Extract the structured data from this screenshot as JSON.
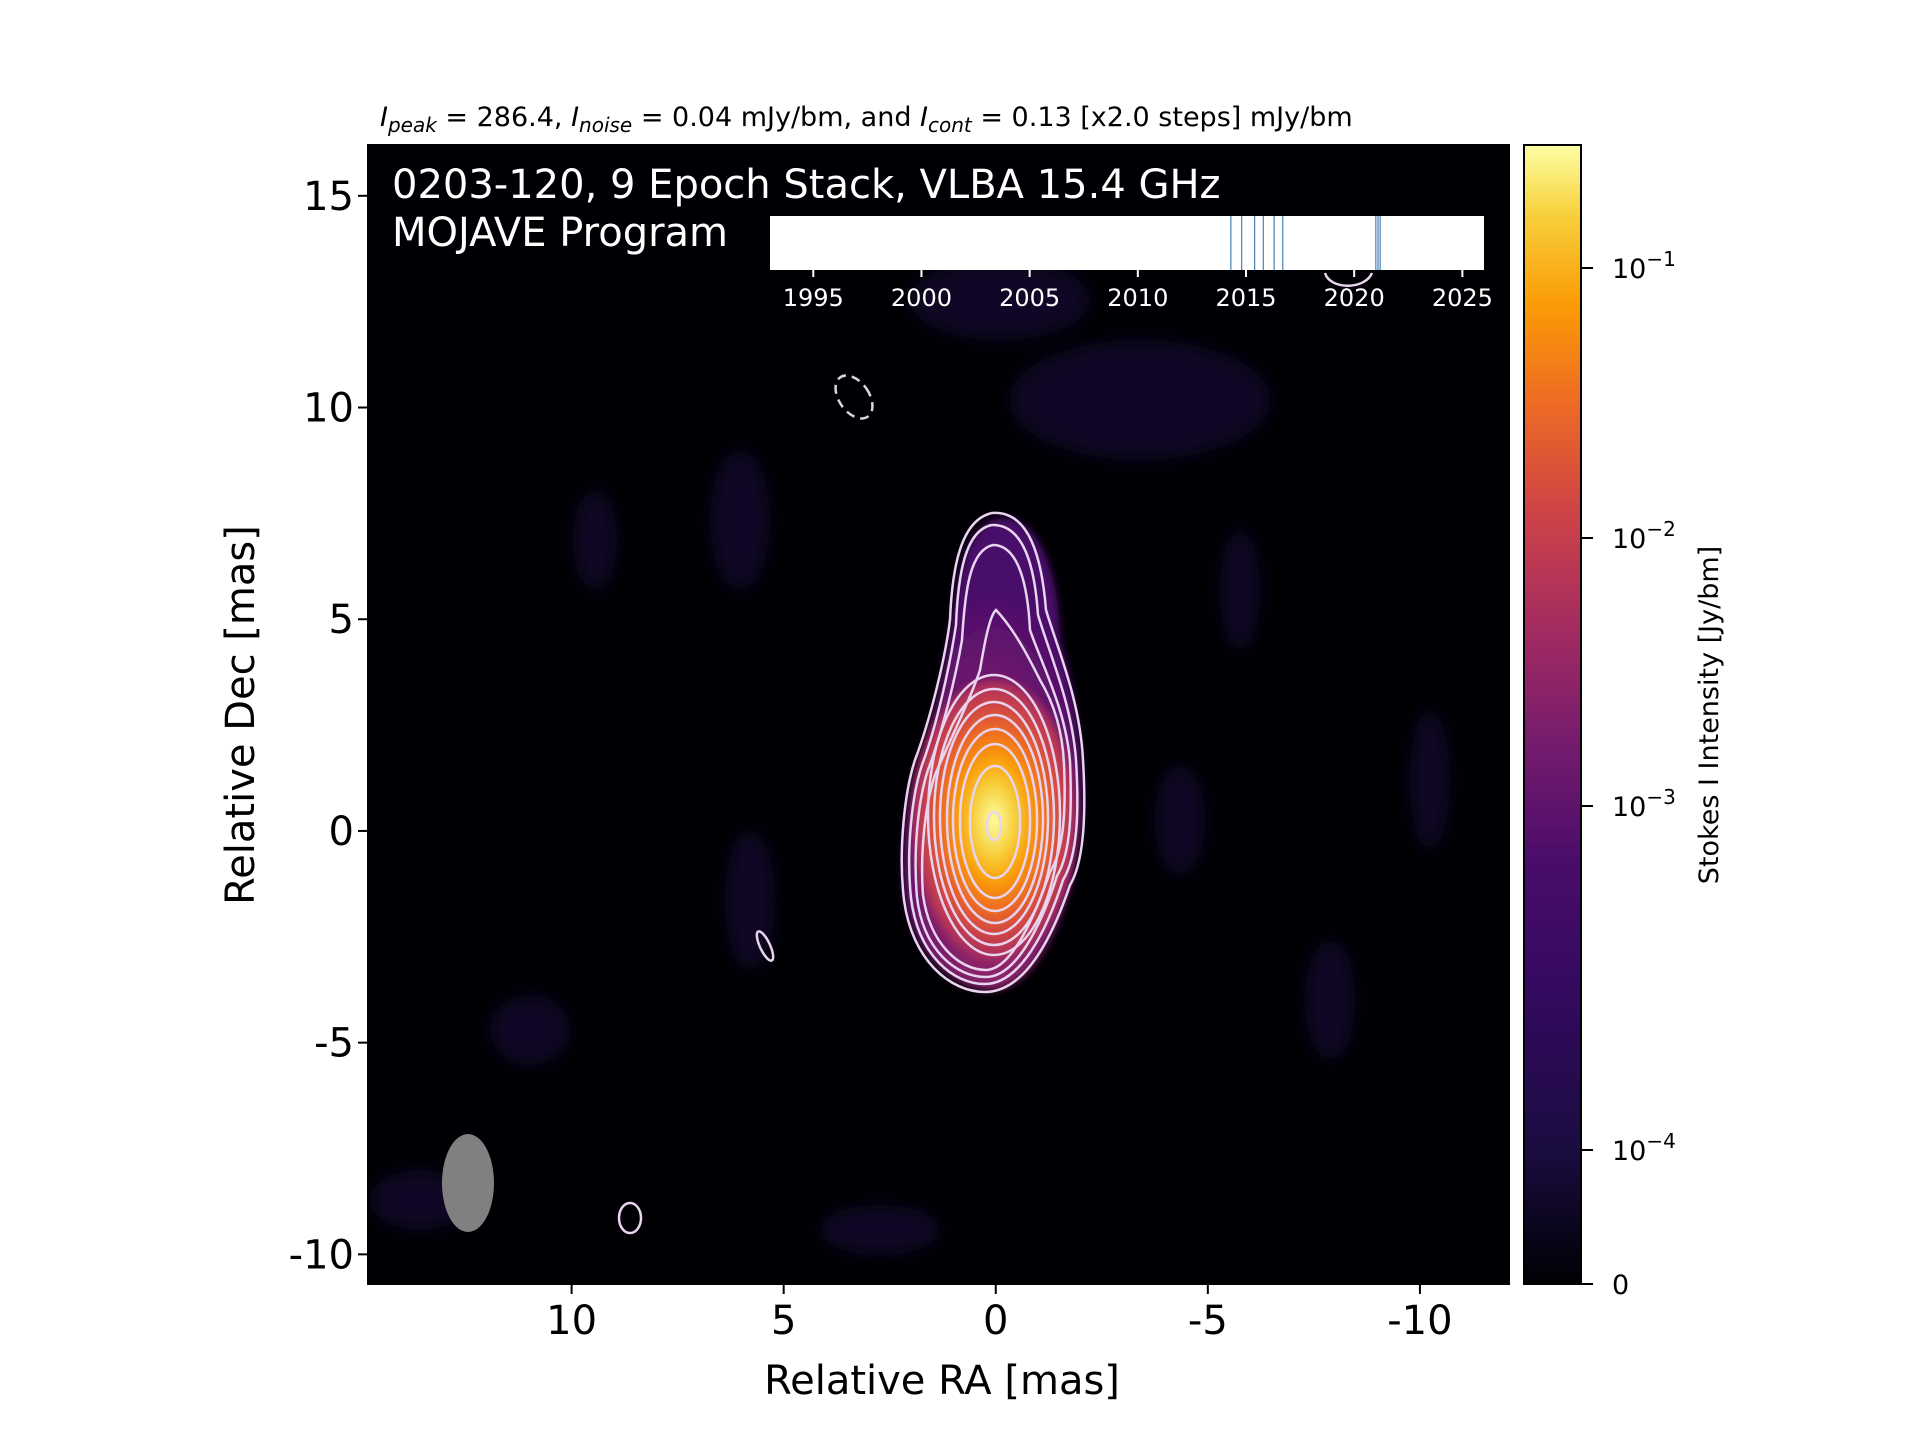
{
  "chart_data": {
    "type": "heatmap",
    "header": {
      "parts": [
        {
          "text": "I",
          "style": "italic"
        },
        {
          "text": "peak",
          "style": "italic-sub"
        },
        {
          "text": " = 286.4, ",
          "style": "normal"
        },
        {
          "text": "I",
          "style": "italic"
        },
        {
          "text": "noise",
          "style": "italic-sub"
        },
        {
          "text": " = 0.04 mJy/bm, and ",
          "style": "normal"
        },
        {
          "text": "I",
          "style": "italic"
        },
        {
          "text": "cont",
          "style": "italic-sub"
        },
        {
          "text": " = 0.13 [x2.0 steps] mJy/bm",
          "style": "normal"
        }
      ]
    },
    "title_lines": [
      "0203-120, 9 Epoch Stack, VLBA 15.4 GHz",
      "MOJAVE Program"
    ],
    "xlabel": "Relative RA [mas]",
    "ylabel": "Relative Dec [mas]",
    "xlim": [
      14.8,
      -12.1
    ],
    "ylim": [
      -10.7,
      16.2
    ],
    "x_ticks": [
      10,
      5,
      0,
      -5,
      -10
    ],
    "x_tick_labels": [
      "10",
      "5",
      "0",
      "-5",
      "-10"
    ],
    "y_ticks": [
      15,
      10,
      5,
      0,
      -5,
      -10
    ],
    "y_tick_labels": [
      "15",
      "10",
      "5",
      "0",
      "-5",
      "-10"
    ],
    "colorbar": {
      "label": "Stokes I Intensity [Jy/bm]",
      "colormap": "inferno",
      "scale": "symlog",
      "ticks": [
        {
          "value": 0.1,
          "label": "10",
          "exp": "−1"
        },
        {
          "value": 0.01,
          "label": "10",
          "exp": "−2"
        },
        {
          "value": 0.001,
          "label": "10",
          "exp": "−3"
        },
        {
          "value": 0.0001,
          "label": "10",
          "exp": "−4"
        },
        {
          "value": 0,
          "label": "0",
          "exp": ""
        }
      ],
      "colors": [
        "#000004",
        "#1b0c41",
        "#4a0c6b",
        "#781c6d",
        "#a52c60",
        "#cf4446",
        "#ed6925",
        "#fb9b06",
        "#f7d13d",
        "#fcffa4"
      ]
    },
    "core": {
      "ra": 0.0,
      "dec": 0.0,
      "peak_jy": 0.2864
    },
    "jet_direction": "north",
    "contours": {
      "base_mjy": 0.13,
      "step_factor": 2.0,
      "color": "#e8d4ee"
    },
    "beam": {
      "ra": 12.3,
      "dec": -8.5,
      "color": "#808080"
    },
    "epoch_timeline": {
      "axis_ticks": [
        "1995",
        "2000",
        "2005",
        "2010",
        "2015",
        "2020",
        "2025"
      ],
      "range": [
        1993,
        2026
      ],
      "epochs": [
        2014.3,
        2014.8,
        2015.4,
        2015.8,
        2016.3,
        2016.7,
        2021.0,
        2021.1,
        2021.2
      ],
      "epoch_color": "#4682b4"
    }
  }
}
